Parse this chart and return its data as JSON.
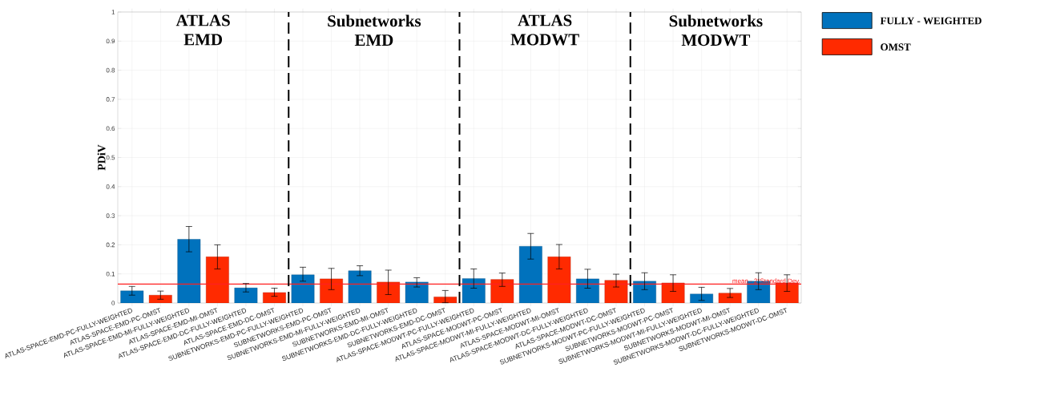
{
  "chart_data": {
    "type": "bar",
    "ylabel": "PDiV",
    "categories": [
      "ATLAS-SPACE-EMD-PC-FULLY-WEIGHTED",
      "ATLAS-SPACE-EMD-PC-OMST",
      "ATLAS-SPACE-EMD-MI-FULLY-WEIGHTED",
      "ATLAS-SPACE-EMD-MI-OMST",
      "ATLAS-SPACE-EMD-DC-FULLY-WEIGHTED",
      "ATLAS-SPACE-EMD-DC-OMST",
      "SUBNETWORKS-EMD-PC-FULLY-WEIGHTED",
      "SUBNETWORKS-EMD-PC-OMST",
      "SUBNETWORKS-EMD-MI-FULLY-WEIGHTED",
      "SUBNETWORKS-EMD-MI-OMST",
      "SUBNETWORKS-EMD-DC-FULLY-WEIGHTED",
      "SUBNETWORKS-EMD-DC-OMST",
      "ATLAS-SPACE-MODWT-PC-FULLY-WEIGHTED",
      "ATLAS-SPACE-MODWT-PC-OMST",
      "ATLAS-SPACE-MODWT-MI-FULLY-WEIGHTED",
      "ATLAS-SPACE-MODWT-MI-OMST",
      "ATLAS-SPACE-MODWT-DC-FULLY-WEIGHTED",
      "ATLAS-SPACE-MODWT-DC-OMST",
      "SUBNETWORKS-MODWT-PC-FULLY-WEIGHTED",
      "SUBNETWORKS-MODWT-PC-OMST",
      "SUBNETWORKS-MODWT-MI-FULLY-WEIGHTED",
      "SUBNETWORKS-MODWT-MI-OMST",
      "SUBNETWORKS-MODWT-DC-FULLY-WEIGHTED",
      "SUBNETWORKS-MODWT-DC-OMST"
    ],
    "series": [
      {
        "name": "FULLY - WEIGHTED",
        "color": "#0072bd",
        "values": [
          0.042,
          null,
          0.219,
          null,
          0.052,
          null,
          0.097,
          null,
          0.111,
          null,
          0.072,
          null,
          0.084,
          null,
          0.195,
          null,
          0.083,
          null,
          0.075,
          null,
          0.031,
          null,
          0.075,
          null
        ],
        "errors": [
          [
            0.027,
            0.057
          ],
          null,
          [
            0.176,
            0.263
          ],
          null,
          [
            0.038,
            0.067
          ],
          null,
          [
            0.075,
            0.123
          ],
          null,
          [
            0.094,
            0.128
          ],
          null,
          [
            0.055,
            0.087
          ],
          null,
          [
            0.051,
            0.117
          ],
          null,
          [
            0.151,
            0.239
          ],
          null,
          [
            0.051,
            0.116
          ],
          null,
          [
            0.046,
            0.104
          ],
          null,
          [
            0.009,
            0.054
          ],
          null,
          [
            0.046,
            0.104
          ],
          null
        ]
      },
      {
        "name": "OMST",
        "color": "#ff2a00",
        "values": [
          null,
          0.027,
          null,
          0.159,
          null,
          0.036,
          null,
          0.083,
          null,
          0.072,
          null,
          0.021,
          null,
          0.081,
          null,
          0.159,
          null,
          0.078,
          null,
          0.069,
          null,
          0.034,
          null,
          0.069
        ],
        "errors": [
          null,
          [
            0.013,
            0.041
          ],
          null,
          [
            0.117,
            0.2
          ],
          null,
          [
            0.023,
            0.051
          ],
          null,
          [
            0.046,
            0.119
          ],
          null,
          [
            0.029,
            0.113
          ],
          null,
          [
            0.001,
            0.043
          ],
          null,
          [
            0.057,
            0.103
          ],
          null,
          [
            0.117,
            0.201
          ],
          null,
          [
            0.055,
            0.099
          ],
          null,
          [
            0.04,
            0.097
          ],
          null,
          [
            0.019,
            0.05
          ],
          null,
          [
            0.04,
            0.097
          ]
        ]
      }
    ],
    "ylim": [
      0,
      1
    ],
    "yticks": [
      0,
      0.1,
      0.2,
      0.3,
      0.4,
      0.5,
      0.6,
      0.7,
      0.8,
      0.9,
      1
    ],
    "grid": true,
    "legend": "top right",
    "ref_lines": [
      {
        "axis": "y",
        "value": 0.065,
        "label": "mean - 2*Standard Dev.",
        "color": "#ff2020",
        "line_style": "solid"
      }
    ],
    "annotations": [
      "ATLAS EMD",
      "Subnetworks EMD",
      "ATLAS MODWT",
      "Subnetworks MODWT"
    ]
  }
}
